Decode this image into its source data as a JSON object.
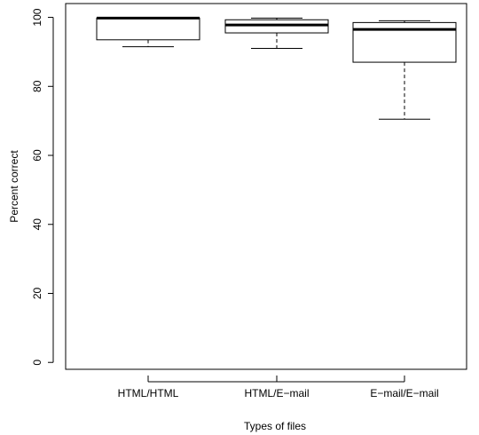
{
  "chart_data": {
    "type": "box",
    "xlabel": "Types of files",
    "ylabel": "Percent correct",
    "ylim": [
      -2,
      104
    ],
    "yticks": [
      0,
      20,
      40,
      60,
      80,
      100
    ],
    "ytick_labels": [
      "0",
      "20",
      "40",
      "60",
      "80",
      "100"
    ],
    "categories": [
      "HTML/HTML",
      "HTML/E−mail",
      "E−mail/E−mail"
    ],
    "boxes": [
      {
        "min": 91.5,
        "q1": 93.5,
        "median": 99.8,
        "q3": 99.8,
        "max": 99.8
      },
      {
        "min": 91.0,
        "q1": 95.5,
        "median": 97.8,
        "q3": 99.3,
        "max": 99.8
      },
      {
        "min": 70.5,
        "q1": 87.0,
        "median": 96.5,
        "q3": 98.5,
        "max": 99.0
      }
    ]
  }
}
